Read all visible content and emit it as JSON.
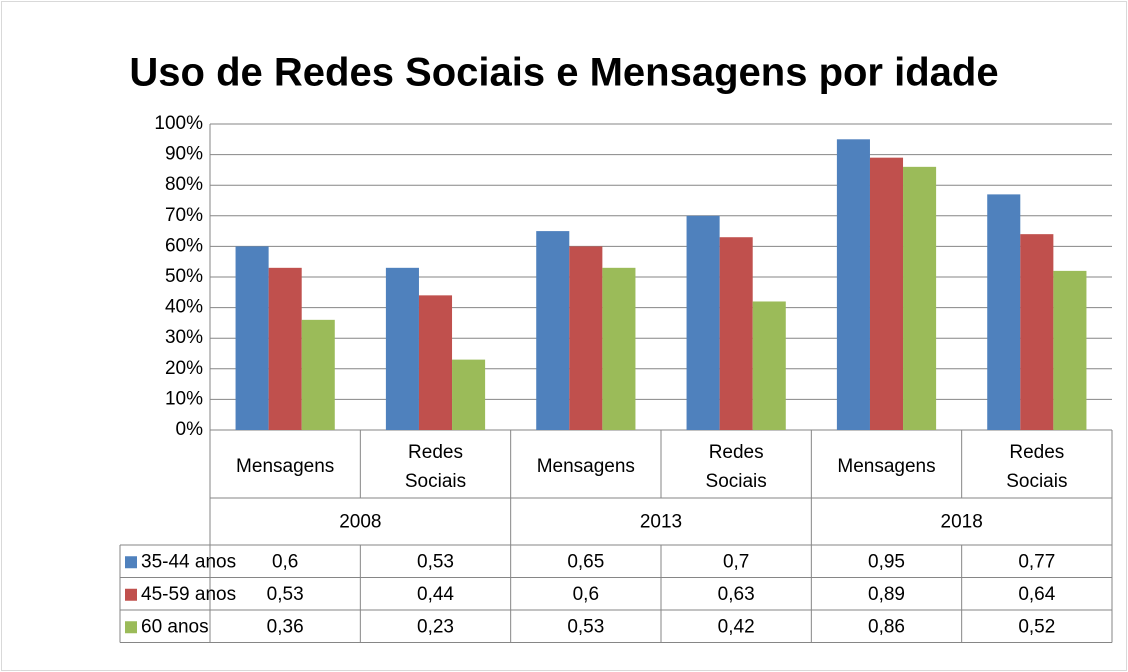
{
  "chart_data": {
    "type": "bar",
    "title": "Uso de Redes Sociais e Mensagens por idade",
    "categories": [
      "Mensagens",
      "Redes Sociais",
      "Mensagens",
      "Redes Sociais",
      "Mensagens",
      "Redes Sociais"
    ],
    "category_groups": [
      "2008",
      "2013",
      "2018"
    ],
    "series": [
      {
        "name": "35-44 anos",
        "color": "#4f81bd",
        "values": [
          0.6,
          0.53,
          0.65,
          0.7,
          0.95,
          0.77
        ],
        "value_labels": [
          "0,6",
          "0,53",
          "0,65",
          "0,7",
          "0,95",
          "0,77"
        ]
      },
      {
        "name": "45-59 anos",
        "color": "#c0504d",
        "values": [
          0.53,
          0.44,
          0.6,
          0.63,
          0.89,
          0.64
        ],
        "value_labels": [
          "0,53",
          "0,44",
          "0,6",
          "0,63",
          "0,89",
          "0,64"
        ]
      },
      {
        "name": "60 anos",
        "color": "#9bbb59",
        "values": [
          0.36,
          0.23,
          0.53,
          0.42,
          0.86,
          0.52
        ],
        "value_labels": [
          "0,36",
          "0,23",
          "0,53",
          "0,42",
          "0,86",
          "0,52"
        ]
      }
    ],
    "ylim": [
      0,
      1
    ],
    "yticks": [
      {
        "value": 0,
        "label": "0%"
      },
      {
        "value": 0.1,
        "label": "10%"
      },
      {
        "value": 0.2,
        "label": "20%"
      },
      {
        "value": 0.3,
        "label": "30%"
      },
      {
        "value": 0.4,
        "label": "40%"
      },
      {
        "value": 0.5,
        "label": "50%"
      },
      {
        "value": 0.6,
        "label": "60%"
      },
      {
        "value": 0.7,
        "label": "70%"
      },
      {
        "value": 0.8,
        "label": "80%"
      },
      {
        "value": 0.9,
        "label": "90%"
      },
      {
        "value": 1,
        "label": "100%"
      }
    ],
    "grid": true,
    "legend": "table"
  }
}
